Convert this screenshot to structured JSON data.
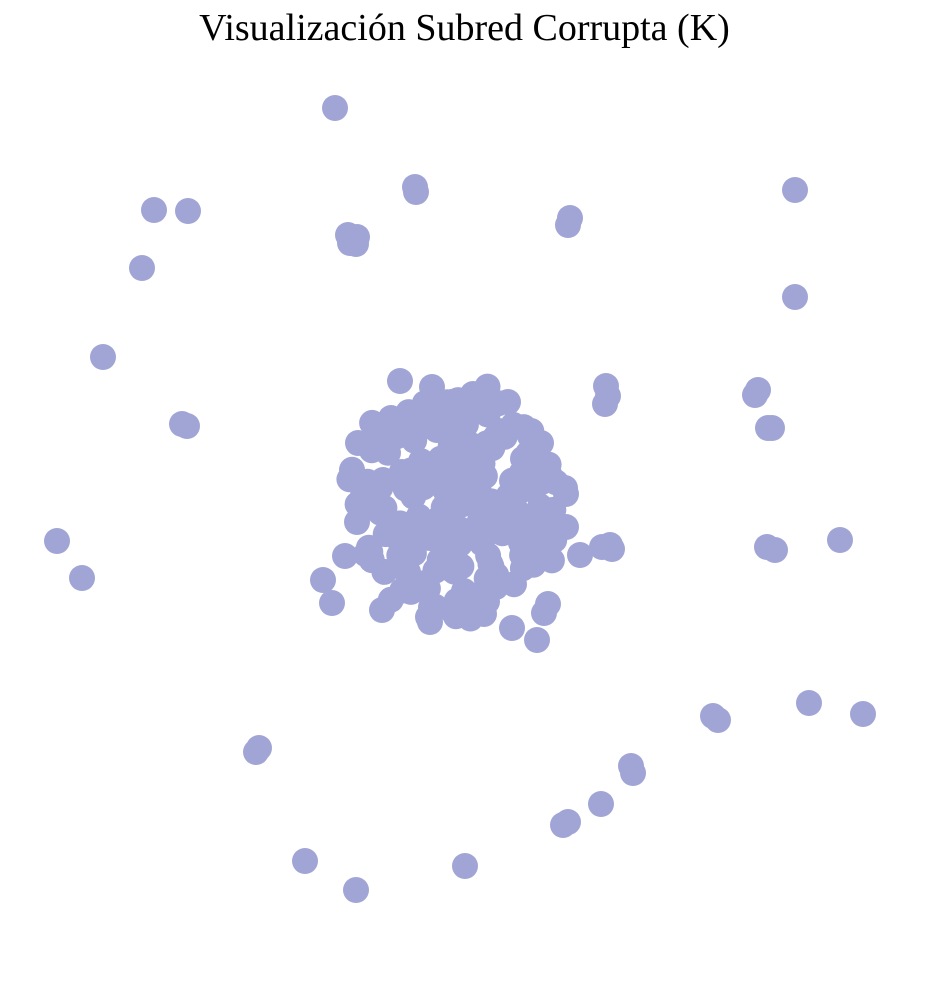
{
  "title": "Visualización Subred Corrupta (K)",
  "colors": {
    "background": "#ffffff",
    "node": "#a1a5d6",
    "title": "#000000"
  },
  "graph": {
    "type": "network",
    "node_count": 260,
    "labels_shown": false,
    "edges_shown": false
  }
}
